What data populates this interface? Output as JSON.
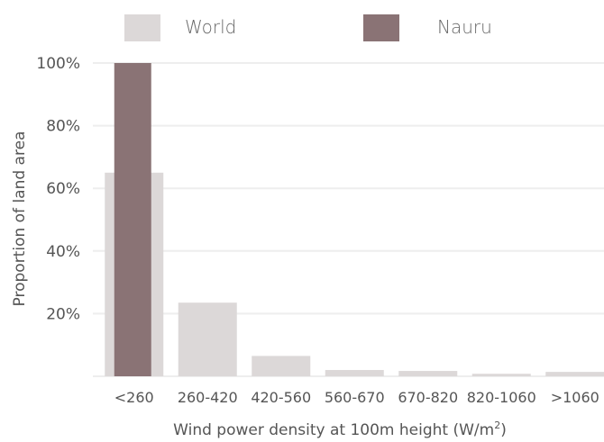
{
  "colors": {
    "world": "#dcd8d8",
    "nauru": "#8a7375",
    "grid": "#eeeeee",
    "text": "#555555"
  },
  "chart_data": {
    "type": "bar",
    "categories": [
      "<260",
      "260-420",
      "420-560",
      "560-670",
      "670-820",
      "820-1060",
      ">1060"
    ],
    "series": [
      {
        "name": "World",
        "values": [
          65,
          23.5,
          6.5,
          2,
          1.7,
          0.8,
          1.4
        ]
      },
      {
        "name": "Nauru",
        "values": [
          100,
          0,
          0,
          0,
          0,
          0,
          0
        ]
      }
    ],
    "y_ticks": [
      {
        "value": 20,
        "label": "20%"
      },
      {
        "value": 40,
        "label": "40%"
      },
      {
        "value": 60,
        "label": "60%"
      },
      {
        "value": 80,
        "label": "80%"
      },
      {
        "value": 100,
        "label": "100%"
      }
    ],
    "ylim": [
      0,
      100
    ],
    "xlabel_main": "Wind power density at 100m height (W/m",
    "xlabel_sup": "2",
    "xlabel_end": ")",
    "ylabel": "Proportion of land area",
    "grid": true,
    "legend_position": "top"
  }
}
